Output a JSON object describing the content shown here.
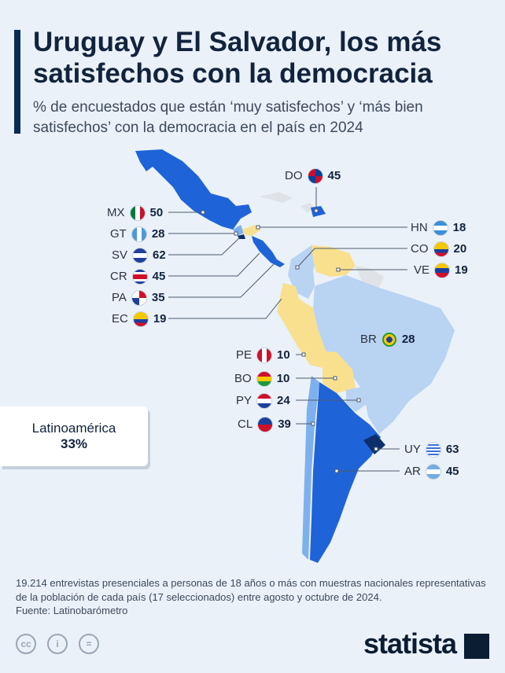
{
  "header": {
    "title": "Uruguay y El Salvador, los más satisfechos con la democracia",
    "subtitle": "% de encuestados que están ‘muy satisfechos’ y ‘más bien satisfechos’ con la democracia en el país en 2024"
  },
  "colors": {
    "high": "#0a2f6b",
    "upper": "#1f63d8",
    "mid": "#7fb0ee",
    "light": "#b9d3f2",
    "low": "#f8e08e",
    "ocean": "#eaf1f8",
    "text": "#12243d"
  },
  "countries": [
    {
      "code": "DO",
      "value": 45,
      "flag": "dominican-republic-flag"
    },
    {
      "code": "MX",
      "value": 50,
      "flag": "mexico-flag"
    },
    {
      "code": "HN",
      "value": 18,
      "flag": "honduras-flag"
    },
    {
      "code": "GT",
      "value": 28,
      "flag": "guatemala-flag"
    },
    {
      "code": "CO",
      "value": 20,
      "flag": "colombia-flag"
    },
    {
      "code": "SV",
      "value": 62,
      "flag": "el-salvador-flag"
    },
    {
      "code": "VE",
      "value": 19,
      "flag": "venezuela-flag"
    },
    {
      "code": "CR",
      "value": 45,
      "flag": "costa-rica-flag"
    },
    {
      "code": "PA",
      "value": 35,
      "flag": "panama-flag"
    },
    {
      "code": "EC",
      "value": 19,
      "flag": "ecuador-flag"
    },
    {
      "code": "BR",
      "value": 28,
      "flag": "brazil-flag"
    },
    {
      "code": "PE",
      "value": 10,
      "flag": "peru-flag"
    },
    {
      "code": "BO",
      "value": 10,
      "flag": "bolivia-flag"
    },
    {
      "code": "PY",
      "value": 24,
      "flag": "paraguay-flag"
    },
    {
      "code": "CL",
      "value": 39,
      "flag": "chile-flag"
    },
    {
      "code": "UY",
      "value": 63,
      "flag": "uruguay-flag"
    },
    {
      "code": "AR",
      "value": 45,
      "flag": "argentina-flag"
    }
  ],
  "average": {
    "label": "Latinoamérica",
    "value": "33%"
  },
  "footer": {
    "note": "19.214 entrevistas presenciales a personas de 18 años o más con muestras nacionales representativas de la población de cada país (17 seleccionados) entre agosto y octubre de 2024.",
    "source": "Fuente: Latinobarómetro",
    "brand": "statista",
    "license_icons": [
      "cc-icon",
      "attribution-icon",
      "no-derivatives-icon"
    ]
  }
}
